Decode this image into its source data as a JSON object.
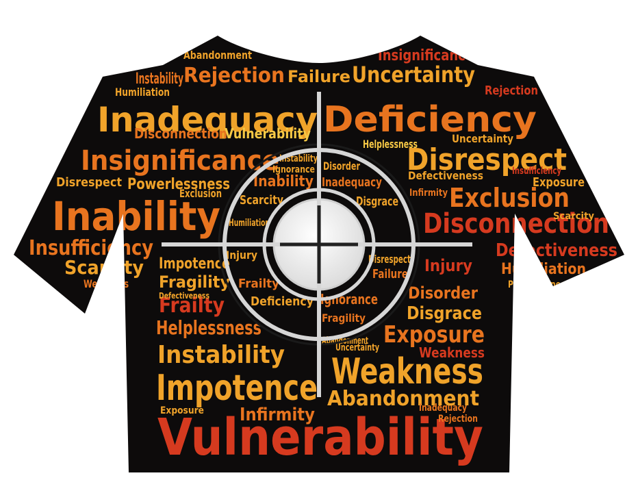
{
  "palette": {
    "background": "#ffffff",
    "shirt": "#0d0b0b",
    "red": "#d63a1f",
    "orange": "#e8741f",
    "amber": "#f0a32a",
    "yellow": "#f6c845",
    "crosshair": "#d6d6d6",
    "bullseye": "#f2f2f2"
  },
  "icons": [
    "target-crosshair-icon"
  ],
  "word_cloud": {
    "words": [
      "Vulnerability",
      "Inadequacy",
      "Deficiency",
      "Inability",
      "Impotence",
      "Weakness",
      "Disrespect",
      "Insignificance",
      "Disconnection",
      "Instability",
      "Exclusion",
      "Insufficiency",
      "Uncertainty",
      "Rejection",
      "Failure",
      "Abandonment",
      "Exposure",
      "Helplessness",
      "Frailty",
      "Fragility",
      "Defectiveness",
      "Humiliation",
      "Powerlessness",
      "Scarcity",
      "Disgrace",
      "Ignorance",
      "Disorder",
      "Infirmity",
      "Injury",
      "Impotence",
      "Vulnerability",
      "Instability",
      "Disconnection",
      "Exclusion",
      "Abandonment",
      "Humiliation",
      "Weakness",
      "Insufficiency",
      "Scarcity",
      "Disrespect",
      "Powerlessness",
      "Defectiveness",
      "Infirmity",
      "Deficiency",
      "Helplessness",
      "Disgrace",
      "Injury",
      "Fragility",
      "Inability",
      "Insignificance",
      "Ignorance",
      "Inadequacy",
      "Disorder",
      "Frailty",
      "Failure",
      "Exposure",
      "Uncertainty",
      "Rejection",
      "Defectiveness",
      "Humiliation",
      "Inadequacy",
      "Scarcity",
      "Inability",
      "Weakness",
      "Abandonment"
    ]
  }
}
